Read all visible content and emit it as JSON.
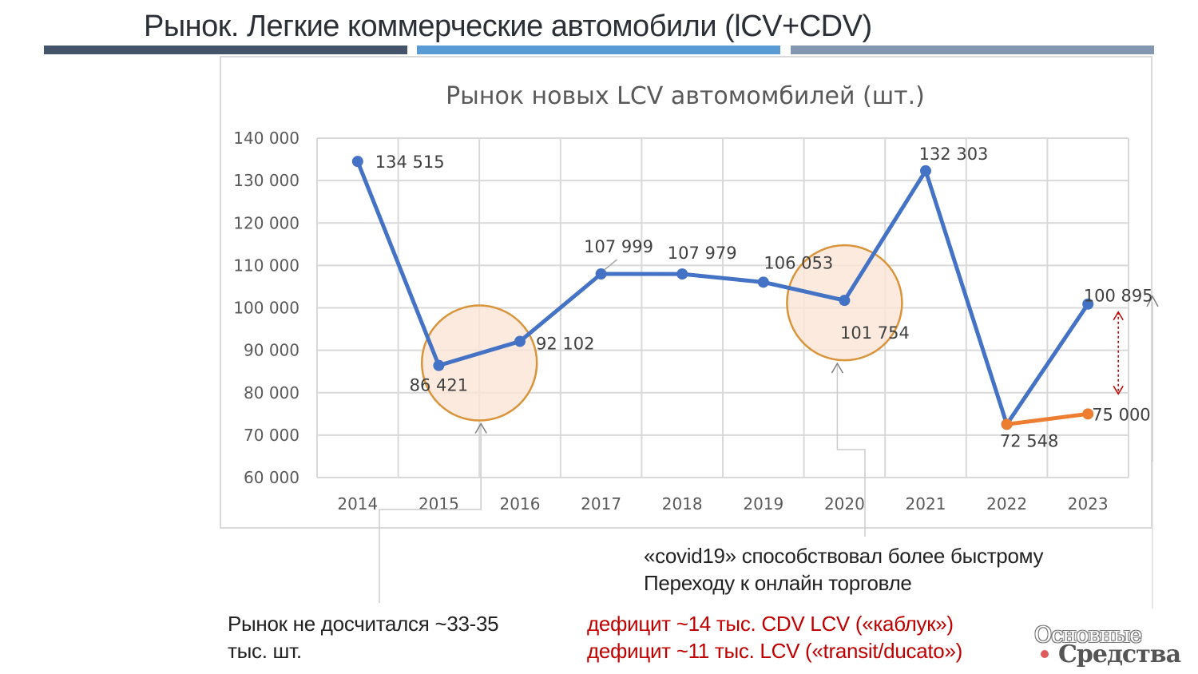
{
  "slide": {
    "title": "Рынок. Легкие коммерческие автомобили (lCV+CDV)",
    "bar_colors": [
      "#44546a",
      "#5b9bd5",
      "#8497b0"
    ]
  },
  "chart_data": {
    "type": "line",
    "title": "Рынок новых LCV автомомбилей (шт.)",
    "categories": [
      "2014",
      "2015",
      "2016",
      "2017",
      "2018",
      "2019",
      "2020",
      "2021",
      "2022",
      "2023"
    ],
    "y_ticks": [
      "60 000",
      "70 000",
      "80 000",
      "90 000",
      "100 000",
      "110 000",
      "120 000",
      "130 000",
      "140 000"
    ],
    "ylim": [
      60000,
      140000
    ],
    "grid": true,
    "series": [
      {
        "color": "#4472c4",
        "values": [
          134515,
          86421,
          92102,
          107999,
          107979,
          106053,
          101754,
          132303,
          72548,
          100895
        ],
        "labels": [
          "134 515",
          "86 421",
          "92 102",
          "107 999",
          "107 979",
          "106 053",
          "101 754",
          "132 303",
          "72 548",
          "100 895"
        ]
      },
      {
        "color": "#ed7d31",
        "x": [
          "2022",
          "2023"
        ],
        "values": [
          72548,
          75000
        ],
        "labels": [
          "",
          "75 000"
        ]
      }
    ],
    "highlights": [
      {
        "x": [
          "2015",
          "2016"
        ],
        "fill": "#fbe5d6",
        "stroke": "#d9943a"
      },
      {
        "x": [
          "2020"
        ],
        "fill": "#fbe5d6",
        "stroke": "#d9943a"
      }
    ],
    "gap_marker": {
      "x": "2023",
      "from": 100895,
      "to": 75000,
      "color": "#c00000"
    }
  },
  "notes": {
    "covid_line1": "«covid19» способствовал более быстрому",
    "covid_line2": "Переходу к онлайн торговле",
    "market_line1": "Рынок не досчитался ~33-35",
    "market_line2": "тыс. шт.",
    "deficit_line1": "дефицит ~14 тыс. CDV LCV («каблук»)",
    "deficit_line2": "дефицит ~11 тыс. LCV («transit/ducato»)"
  },
  "logo": {
    "line1": "Основные",
    "line2": "Средства",
    "dot_color": "#e05a5a"
  }
}
